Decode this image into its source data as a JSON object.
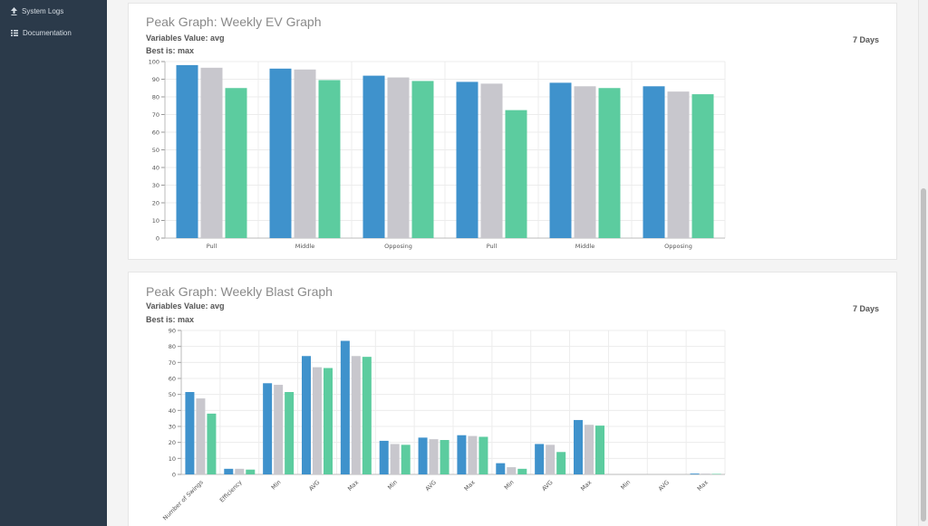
{
  "sidebar": {
    "items": [
      {
        "label": "System Logs",
        "icon": "upload-icon"
      },
      {
        "label": "Documentation",
        "icon": "grid-icon"
      }
    ]
  },
  "colors": {
    "series1": "#3f92cc",
    "series2": "#c8c7cd",
    "series3": "#5ccc9f"
  },
  "panels": [
    {
      "title": "Peak Graph: Weekly EV Graph",
      "variables": "Variables Value: avg",
      "best": "Best is: max",
      "days": "7 Days"
    },
    {
      "title": "Peak Graph: Weekly Blast Graph",
      "variables": "Variables Value: avg",
      "best": "Best is: max",
      "days": "7 Days"
    }
  ],
  "chart_data": [
    {
      "type": "bar",
      "categories": [
        "Pull",
        "Middle",
        "Opposing",
        "Pull",
        "Middle",
        "Opposing"
      ],
      "series": [
        {
          "values": [
            98,
            96,
            92,
            88.5,
            88,
            86
          ]
        },
        {
          "values": [
            96.5,
            95.5,
            91,
            87.5,
            86,
            83
          ]
        },
        {
          "values": [
            85,
            89.5,
            89,
            72.5,
            85,
            81.5
          ]
        }
      ],
      "ylim": [
        0,
        100
      ],
      "yticks": [
        0,
        10,
        20,
        30,
        40,
        50,
        60,
        70,
        80,
        90,
        100
      ],
      "grid": true
    },
    {
      "type": "bar",
      "categories": [
        "Number of Swings",
        "Efficiency",
        "Min",
        "AVG",
        "Max",
        "Min",
        "AVG",
        "Max",
        "Min",
        "AVG",
        "Max",
        "Min",
        "AVG",
        "Max"
      ],
      "series": [
        {
          "values": [
            51.5,
            3.5,
            57,
            74,
            83.5,
            21,
            23,
            24.5,
            7,
            19,
            34,
            0,
            0,
            0.5
          ]
        },
        {
          "values": [
            47.5,
            3.5,
            56,
            67,
            74,
            19,
            22,
            24,
            4.5,
            18.5,
            31,
            0,
            0,
            0.5
          ]
        },
        {
          "values": [
            38,
            3,
            51.5,
            66.5,
            73.5,
            18.5,
            21.5,
            23.5,
            3.5,
            14,
            30.5,
            0,
            0,
            0.3
          ]
        }
      ],
      "ylim": [
        0,
        90
      ],
      "yticks": [
        0,
        10,
        20,
        30,
        40,
        50,
        60,
        70,
        80,
        90
      ],
      "grid": true
    }
  ]
}
